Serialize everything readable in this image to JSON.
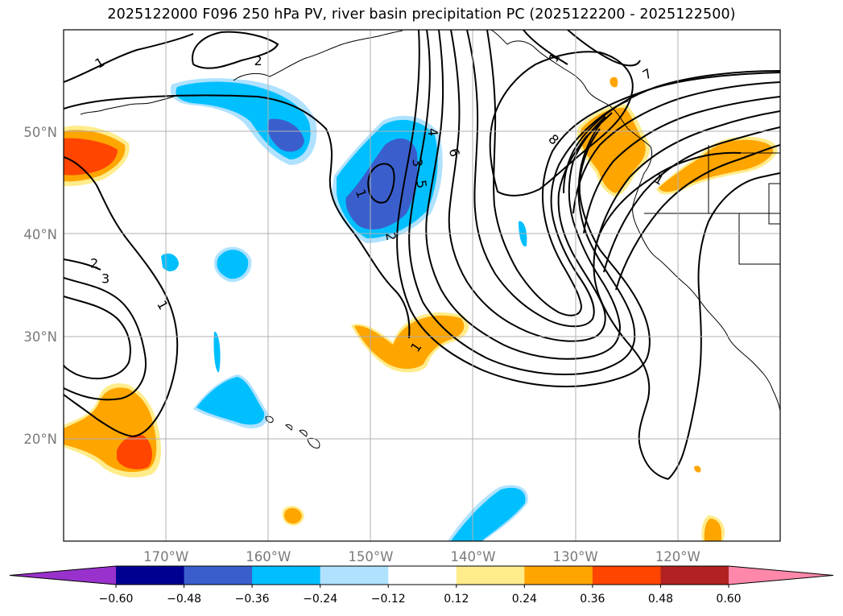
{
  "title": "2025122000 F096 250 hPa PV, river basin precipitation PC (2025122200 - 2025122500)",
  "colors": {
    "frame": "#000000",
    "grid": "#b0b0b0",
    "axis_label": "#7a7a7a",
    "contour": "#000000"
  },
  "map": {
    "projection": "PlateCarree",
    "lon_range": [
      -180,
      -110
    ],
    "lat_range": [
      10,
      60
    ],
    "lon_ticks": [
      {
        "value": -170,
        "label": "170°W"
      },
      {
        "value": -160,
        "label": "160°W"
      },
      {
        "value": -150,
        "label": "150°W"
      },
      {
        "value": -140,
        "label": "140°W"
      },
      {
        "value": -130,
        "label": "130°W"
      },
      {
        "value": -120,
        "label": "120°W"
      }
    ],
    "lat_ticks": [
      {
        "value": 50,
        "label": "50°N"
      },
      {
        "value": 40,
        "label": "40°N"
      },
      {
        "value": 30,
        "label": "30°N"
      },
      {
        "value": 20,
        "label": "20°N"
      }
    ]
  },
  "pv_contour_labels": [
    {
      "text": "1",
      "lon": -176.5,
      "lat": 56.8,
      "rot": -30
    },
    {
      "text": "2",
      "lon": -161.0,
      "lat": 57.0,
      "rot": 0
    },
    {
      "text": "2",
      "lon": -177.0,
      "lat": 37.2,
      "rot": 0
    },
    {
      "text": "3",
      "lon": -175.9,
      "lat": 35.7,
      "rot": 0
    },
    {
      "text": "1",
      "lon": -170.3,
      "lat": 33.1,
      "rot": 60
    },
    {
      "text": "1",
      "lon": -150.9,
      "lat": 44.0,
      "rot": 70
    },
    {
      "text": "3",
      "lon": -145.4,
      "lat": 47.0,
      "rot": 85
    },
    {
      "text": "4",
      "lon": -143.9,
      "lat": 50.0,
      "rot": 85
    },
    {
      "text": "5",
      "lon": -145.0,
      "lat": 44.9,
      "rot": 80
    },
    {
      "text": "6",
      "lon": -141.8,
      "lat": 48.0,
      "rot": 75
    },
    {
      "text": "2",
      "lon": -148.0,
      "lat": 39.8,
      "rot": 80
    },
    {
      "text": "1",
      "lon": -145.6,
      "lat": 29.0,
      "rot": -55
    },
    {
      "text": "8",
      "lon": -132.1,
      "lat": 49.3,
      "rot": 45
    },
    {
      "text": "7",
      "lon": -123.0,
      "lat": 55.7,
      "rot": -30
    },
    {
      "text": "1",
      "lon": -132.1,
      "lat": 57.3,
      "rot": -60
    },
    {
      "text": "1",
      "lon": -121.8,
      "lat": 45.4,
      "rot": 30
    }
  ],
  "colorbar": {
    "ticks": [
      "−0.60",
      "−0.48",
      "−0.36",
      "−0.24",
      "−0.12",
      "0.12",
      "0.24",
      "0.36",
      "0.48",
      "0.60"
    ],
    "under_color": "#9932cc",
    "over_color": "#ff88aa",
    "colors": [
      "#000090",
      "#3a5fcd",
      "#00bfff",
      "#b0e2ff",
      "#ffffff",
      "#ffec8b",
      "#ffa500",
      "#ff4500",
      "#b22222"
    ]
  }
}
